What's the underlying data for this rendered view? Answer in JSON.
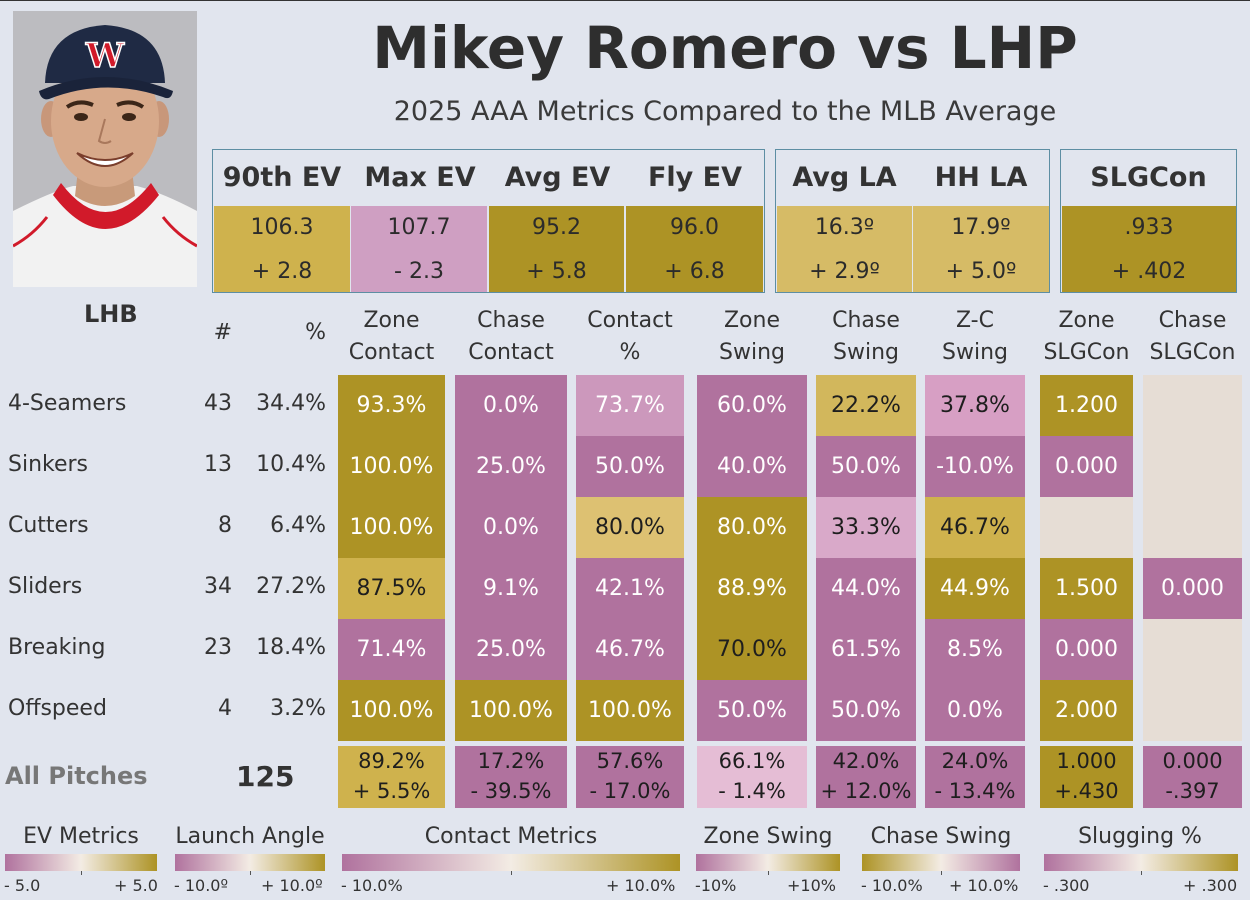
{
  "header": {
    "title": "Mikey Romero vs LHP",
    "subtitle": "2025 AAA Metrics Compared to the MLB Average",
    "hand": "LHB"
  },
  "colors": {
    "gold_dark": "#ad9325",
    "gold_mid": "#cfb24d",
    "gold_light": "#ddc172",
    "mauve_dark": "#b0729e",
    "mauve_mid": "#c08ab0",
    "mauve_light": "#d79fc4",
    "pale_pink": "#e5bdd5",
    "empty": "#e6ddd5"
  },
  "metrics": [
    {
      "label": "90th EV",
      "value": "106.3",
      "delta": "+ 2.8",
      "color": "#cfb24d"
    },
    {
      "label": "Max EV",
      "value": "107.7",
      "delta": "- 2.3",
      "color": "#cf9fc2"
    },
    {
      "label": "Avg EV",
      "value": "95.2",
      "delta": "+ 5.8",
      "color": "#ad9325"
    },
    {
      "label": "Fly EV",
      "value": "96.0",
      "delta": "+ 6.8",
      "color": "#ad9325"
    },
    {
      "label": "Avg LA",
      "value": "16.3º",
      "delta": "+ 2.9º",
      "color": "#d6bb66"
    },
    {
      "label": "HH LA",
      "value": "17.9º",
      "delta": "+ 5.0º",
      "color": "#d6bb66"
    },
    {
      "label": "SLGCon",
      "value": ".933",
      "delta": "+ .402",
      "color": "#ad9325"
    }
  ],
  "table": {
    "count_header": "#",
    "pct_header": "%",
    "columns": [
      {
        "l1": "Zone",
        "l2": "Contact"
      },
      {
        "l1": "Chase",
        "l2": "Contact"
      },
      {
        "l1": "Contact",
        "l2": "%"
      },
      {
        "l1": "Zone",
        "l2": "Swing"
      },
      {
        "l1": "Chase",
        "l2": "Swing"
      },
      {
        "l1": "Z-C",
        "l2": "Swing"
      },
      {
        "l1": "Zone",
        "l2": "SLGCon"
      },
      {
        "l1": "Chase",
        "l2": "SLGCon"
      }
    ],
    "rows": [
      {
        "pitch": "4-Seamers",
        "count": "43",
        "pct": "34.4%",
        "cells": [
          {
            "t": "93.3%",
            "c": "#ad9325",
            "f": "light"
          },
          {
            "t": "0.0%",
            "c": "#b0729e",
            "f": "light"
          },
          {
            "t": "73.7%",
            "c": "#cc98bc",
            "f": "light"
          },
          {
            "t": "60.0%",
            "c": "#b0729e",
            "f": "light"
          },
          {
            "t": "22.2%",
            "c": "#d2b75c",
            "f": "dark"
          },
          {
            "t": "37.8%",
            "c": "#d79fc4",
            "f": "dark"
          },
          {
            "t": "1.200",
            "c": "#ad9325",
            "f": "light"
          },
          {
            "t": "",
            "c": "#e6ddd5",
            "f": "dark"
          }
        ]
      },
      {
        "pitch": "Sinkers",
        "count": "13",
        "pct": "10.4%",
        "cells": [
          {
            "t": "100.0%",
            "c": "#ad9325",
            "f": "light"
          },
          {
            "t": "25.0%",
            "c": "#b0729e",
            "f": "light"
          },
          {
            "t": "50.0%",
            "c": "#b0729e",
            "f": "light"
          },
          {
            "t": "40.0%",
            "c": "#b0729e",
            "f": "light"
          },
          {
            "t": "50.0%",
            "c": "#b0729e",
            "f": "light"
          },
          {
            "t": "-10.0%",
            "c": "#b0729e",
            "f": "light"
          },
          {
            "t": "0.000",
            "c": "#b0729e",
            "f": "light"
          },
          {
            "t": "",
            "c": "#e6ddd5",
            "f": "dark"
          }
        ]
      },
      {
        "pitch": "Cutters",
        "count": "8",
        "pct": "6.4%",
        "cells": [
          {
            "t": "100.0%",
            "c": "#ad9325",
            "f": "light"
          },
          {
            "t": "0.0%",
            "c": "#b0729e",
            "f": "light"
          },
          {
            "t": "80.0%",
            "c": "#ddc172",
            "f": "dark"
          },
          {
            "t": "80.0%",
            "c": "#ad9325",
            "f": "light"
          },
          {
            "t": "33.3%",
            "c": "#d9a9c9",
            "f": "dark"
          },
          {
            "t": "46.7%",
            "c": "#cfb24d",
            "f": "dark"
          },
          {
            "t": "",
            "c": "#e6ddd5",
            "f": "dark"
          },
          {
            "t": "",
            "c": "#e6ddd5",
            "f": "dark"
          }
        ]
      },
      {
        "pitch": "Sliders",
        "count": "34",
        "pct": "27.2%",
        "cells": [
          {
            "t": "87.5%",
            "c": "#cfb24d",
            "f": "dark"
          },
          {
            "t": "9.1%",
            "c": "#b0729e",
            "f": "light"
          },
          {
            "t": "42.1%",
            "c": "#b0729e",
            "f": "light"
          },
          {
            "t": "88.9%",
            "c": "#ad9325",
            "f": "light"
          },
          {
            "t": "44.0%",
            "c": "#b0729e",
            "f": "light"
          },
          {
            "t": "44.9%",
            "c": "#ad9325",
            "f": "light"
          },
          {
            "t": "1.500",
            "c": "#ad9325",
            "f": "light"
          },
          {
            "t": "0.000",
            "c": "#b0729e",
            "f": "light"
          }
        ]
      },
      {
        "pitch": "Breaking",
        "count": "23",
        "pct": "18.4%",
        "cells": [
          {
            "t": "71.4%",
            "c": "#b0729e",
            "f": "light"
          },
          {
            "t": "25.0%",
            "c": "#b0729e",
            "f": "light"
          },
          {
            "t": "46.7%",
            "c": "#b0729e",
            "f": "light"
          },
          {
            "t": "70.0%",
            "c": "#ad9325",
            "f": "dark"
          },
          {
            "t": "61.5%",
            "c": "#b0729e",
            "f": "light"
          },
          {
            "t": "8.5%",
            "c": "#b0729e",
            "f": "light"
          },
          {
            "t": "0.000",
            "c": "#b0729e",
            "f": "light"
          },
          {
            "t": "",
            "c": "#e6ddd5",
            "f": "dark"
          }
        ]
      },
      {
        "pitch": "Offspeed",
        "count": "4",
        "pct": "3.2%",
        "cells": [
          {
            "t": "100.0%",
            "c": "#ad9325",
            "f": "light"
          },
          {
            "t": "100.0%",
            "c": "#ad9325",
            "f": "light"
          },
          {
            "t": "100.0%",
            "c": "#ad9325",
            "f": "light"
          },
          {
            "t": "50.0%",
            "c": "#b0729e",
            "f": "light"
          },
          {
            "t": "50.0%",
            "c": "#b0729e",
            "f": "light"
          },
          {
            "t": "0.0%",
            "c": "#b0729e",
            "f": "light"
          },
          {
            "t": "2.000",
            "c": "#ad9325",
            "f": "light"
          },
          {
            "t": "",
            "c": "#e6ddd5",
            "f": "dark"
          }
        ]
      }
    ],
    "all": {
      "label": "All Pitches",
      "count": "125",
      "cells": [
        {
          "v": "89.2%",
          "d": "+ 5.5%",
          "c": "#cfb24d",
          "f": "dark"
        },
        {
          "v": "17.2%",
          "d": "- 39.5%",
          "c": "#b0729e",
          "f": "dark"
        },
        {
          "v": "57.6%",
          "d": "- 17.0%",
          "c": "#b0729e",
          "f": "dark"
        },
        {
          "v": "66.1%",
          "d": "- 1.4%",
          "c": "#e5bdd5",
          "f": "dark"
        },
        {
          "v": "42.0%",
          "d": "+ 12.0%",
          "c": "#b0729e",
          "f": "dark"
        },
        {
          "v": "24.0%",
          "d": "- 13.4%",
          "c": "#b0729e",
          "f": "dark"
        },
        {
          "v": "1.000",
          "d": "+.430",
          "c": "#ad9325",
          "f": "dark"
        },
        {
          "v": "0.000",
          "d": "-.397",
          "c": "#b0729e",
          "f": "dark"
        }
      ]
    }
  },
  "legends": [
    {
      "title": "EV Metrics",
      "low": "- 5.0",
      "high": "+ 5.0",
      "dir": "mauve-gold"
    },
    {
      "title": "Launch Angle",
      "low": "- 10.0º",
      "high": "+ 10.0º",
      "dir": "mauve-gold"
    },
    {
      "title": "Contact Metrics",
      "low": "- 10.0%",
      "high": "+ 10.0%",
      "dir": "mauve-gold"
    },
    {
      "title": "Zone Swing",
      "low": "-10%",
      "high": "+10%",
      "dir": "mauve-gold"
    },
    {
      "title": "Chase Swing",
      "low": "- 10.0%",
      "high": "+ 10.0%",
      "dir": "gold-mauve"
    },
    {
      "title": "Slugging %",
      "low": "- .300",
      "high": "+ .300",
      "dir": "mauve-gold"
    }
  ]
}
